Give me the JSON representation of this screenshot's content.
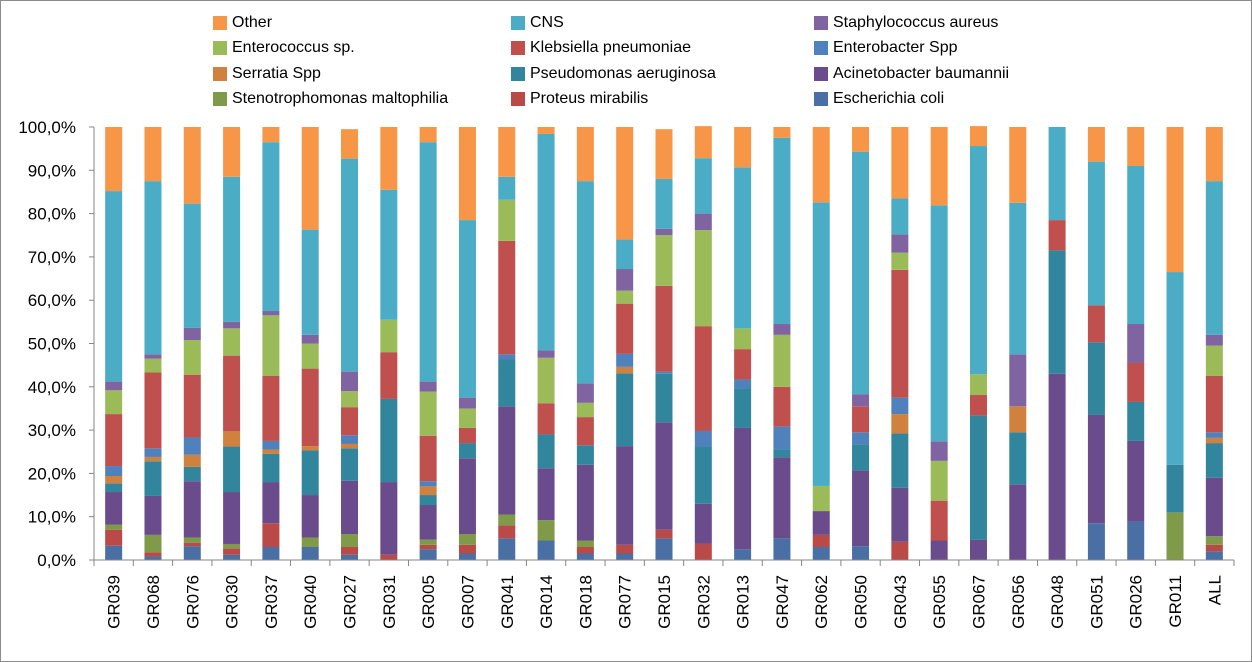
{
  "chart_data": {
    "type": "bar",
    "stacked": true,
    "percent": true,
    "title": "",
    "xlabel": "",
    "ylabel": "",
    "ylim": [
      0,
      100
    ],
    "yticks": [
      "0,0%",
      "10,0%",
      "20,0%",
      "30,0%",
      "40,0%",
      "50,0%",
      "60,0%",
      "70,0%",
      "80,0%",
      "90,0%",
      "100,0%"
    ],
    "grid": false,
    "legend_position": "top",
    "categories": [
      "GR039",
      "GR068",
      "GR076",
      "GR030",
      "GR037",
      "GR040",
      "GR027",
      "GR031",
      "GR005",
      "GR007",
      "GR041",
      "GR014",
      "GR018",
      "GR077",
      "GR015",
      "GR032",
      "GR013",
      "GR047",
      "GR062",
      "GR050",
      "GR043",
      "GR055",
      "GR067",
      "GR056",
      "GR048",
      "GR051",
      "GR026",
      "GR011",
      "ALL"
    ],
    "series": [
      {
        "name": "Escherichia coli",
        "color": "#4a6fa5",
        "values": [
          3.3,
          0.8,
          3.2,
          1.2,
          3.0,
          3.0,
          1.2,
          0.0,
          2.5,
          1.5,
          5.0,
          4.5,
          1.5,
          1.5,
          5.0,
          0.0,
          2.5,
          5.0,
          3.0,
          3.2,
          0.0,
          0.0,
          0.0,
          0.0,
          0.0,
          8.5,
          9.0,
          0.0,
          2.0
        ]
      },
      {
        "name": "Proteus mirabilis",
        "color": "#b94a48",
        "values": [
          3.7,
          1.0,
          0.8,
          1.5,
          5.5,
          0.0,
          1.8,
          1.2,
          1.0,
          2.0,
          3.0,
          0.0,
          1.5,
          2.0,
          2.0,
          3.8,
          0.0,
          0.0,
          2.8,
          0.0,
          4.2,
          0.0,
          0.0,
          0.0,
          0.0,
          0.0,
          0.0,
          0.0,
          1.5
        ]
      },
      {
        "name": "Stenotrophomonas maltophilia",
        "color": "#7f9a48",
        "values": [
          1.2,
          4.0,
          1.2,
          1.0,
          0.0,
          2.2,
          3.0,
          0.0,
          1.2,
          2.5,
          2.5,
          4.7,
          1.5,
          0.0,
          0.0,
          0.0,
          0.0,
          0.0,
          0.0,
          0.0,
          0.0,
          0.0,
          0.0,
          0.0,
          0.0,
          0.0,
          0.0,
          11.0,
          2.0
        ]
      },
      {
        "name": "Acinetobacter baumannii",
        "color": "#6a4c8c",
        "values": [
          7.5,
          9.0,
          13.0,
          12.0,
          9.5,
          9.8,
          12.3,
          16.8,
          8.0,
          17.5,
          25.0,
          12.0,
          17.5,
          22.8,
          24.8,
          9.2,
          28.0,
          18.7,
          5.5,
          17.5,
          12.5,
          4.5,
          4.7,
          17.5,
          43.0,
          25.0,
          18.5,
          0.0,
          13.5
        ]
      },
      {
        "name": "Pseudomonas aeruginosa",
        "color": "#31859c",
        "values": [
          2.0,
          8.0,
          3.3,
          10.5,
          6.5,
          10.3,
          7.5,
          19.2,
          2.3,
          3.5,
          10.8,
          7.8,
          4.5,
          16.8,
          11.2,
          13.2,
          9.2,
          1.8,
          0.0,
          6.0,
          12.5,
          0.0,
          28.7,
          12.0,
          28.5,
          16.8,
          9.0,
          11.0,
          8.0
        ]
      },
      {
        "name": "Serratia Spp",
        "color": "#d0813d",
        "values": [
          1.7,
          1.0,
          2.8,
          3.5,
          1.0,
          1.0,
          1.0,
          0.0,
          2.0,
          0.0,
          0.0,
          0.0,
          0.0,
          1.5,
          0.0,
          0.0,
          0.0,
          0.0,
          0.0,
          0.0,
          4.5,
          0.0,
          0.0,
          6.0,
          0.0,
          0.0,
          0.0,
          0.0,
          1.2
        ]
      },
      {
        "name": "Enterobacter Spp",
        "color": "#4f81bd",
        "values": [
          2.3,
          2.0,
          4.0,
          0.0,
          2.0,
          0.0,
          2.0,
          0.0,
          1.2,
          0.0,
          1.2,
          0.0,
          0.0,
          3.0,
          0.5,
          3.6,
          2.0,
          5.3,
          0.0,
          2.8,
          3.8,
          0.0,
          0.0,
          0.0,
          0.0,
          0.0,
          0.0,
          0.0,
          1.3
        ]
      },
      {
        "name": "Klebsiella pneumoniae",
        "color": "#c0504d",
        "values": [
          12.0,
          17.5,
          14.5,
          17.5,
          15.0,
          17.9,
          6.5,
          10.8,
          10.5,
          3.5,
          26.2,
          7.2,
          6.5,
          11.6,
          19.8,
          24.2,
          7.0,
          9.2,
          0.0,
          6.0,
          29.5,
          9.2,
          4.7,
          0.0,
          7.0,
          8.5,
          9.0,
          0.0,
          13.0
        ]
      },
      {
        "name": "Enterococcus sp.",
        "color": "#9bbb59",
        "values": [
          5.5,
          3.2,
          8.0,
          6.3,
          14.0,
          5.8,
          3.7,
          7.5,
          10.2,
          4.5,
          9.5,
          10.5,
          3.3,
          3.0,
          11.7,
          22.2,
          4.8,
          12.0,
          5.8,
          0.0,
          4.0,
          9.2,
          4.8,
          0.0,
          0.0,
          0.0,
          0.0,
          0.0,
          7.0
        ]
      },
      {
        "name": "Staphylococcus aureus",
        "color": "#8064a2",
        "values": [
          2.0,
          1.0,
          2.8,
          1.5,
          1.0,
          2.0,
          4.5,
          0.0,
          2.3,
          2.5,
          0.0,
          1.7,
          4.5,
          5.0,
          1.5,
          3.8,
          0.0,
          2.5,
          0.0,
          2.8,
          4.2,
          4.5,
          0.0,
          12.0,
          0.0,
          0.0,
          9.0,
          0.0,
          2.5
        ]
      },
      {
        "name": "CNS",
        "color": "#4bacc6",
        "values": [
          44.0,
          40.0,
          28.7,
          33.5,
          39.0,
          24.3,
          49.2,
          30.0,
          55.3,
          41.0,
          5.3,
          50.0,
          46.7,
          6.8,
          11.5,
          12.8,
          37.2,
          43.0,
          65.5,
          56.0,
          8.3,
          54.5,
          52.7,
          35.0,
          21.5,
          33.2,
          36.5,
          44.5,
          35.5
        ]
      },
      {
        "name": "Other",
        "color": "#f79646",
        "values": [
          14.8,
          12.5,
          17.7,
          11.5,
          3.5,
          23.7,
          6.8,
          14.5,
          3.5,
          21.5,
          11.5,
          1.6,
          12.5,
          26.0,
          11.5,
          7.4,
          9.3,
          2.5,
          17.4,
          5.7,
          16.5,
          18.1,
          4.6,
          17.5,
          0.0,
          8.0,
          9.0,
          33.5,
          12.5
        ]
      }
    ]
  },
  "legend_columns": [
    [
      "Other",
      "Enterococcus sp.",
      "Serratia Spp",
      "Stenotrophomonas maltophilia"
    ],
    [
      "CNS",
      "Klebsiella pneumoniae",
      "Pseudomonas aeruginosa",
      "Proteus mirabilis"
    ],
    [
      "Staphylococcus aureus",
      "Enterobacter Spp",
      "Acinetobacter baumannii",
      "Escherichia coli"
    ]
  ]
}
